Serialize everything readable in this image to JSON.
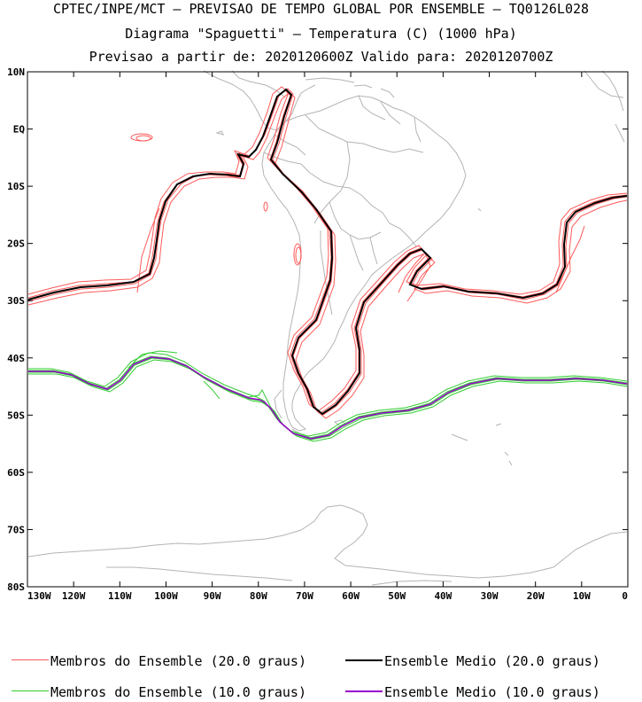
{
  "title": {
    "line1": "CPTEC/INPE/MCT – PREVISAO DE TEMPO GLOBAL POR ENSEMBLE – TQ0126L028",
    "line2": "Diagrama \"Spaguetti\" – Temperatura (C) (1000 hPa)",
    "line3": "Previsao a partir de: 2020120600Z  Valido para: 2020120700Z"
  },
  "map": {
    "lat_range": [
      -80,
      10
    ],
    "lon_range": [
      -130,
      0
    ],
    "lat_ticks": [
      "10N",
      "EQ",
      "10S",
      "20S",
      "30S",
      "40S",
      "50S",
      "60S",
      "70S",
      "80S"
    ],
    "lon_ticks": [
      "130W",
      "120W",
      "110W",
      "100W",
      "90W",
      "80W",
      "70W",
      "60W",
      "50W",
      "40W",
      "30W",
      "20W",
      "10W",
      "0"
    ]
  },
  "legend": [
    {
      "label": "Membros do Ensemble (20.0 graus)",
      "color": "#ff5a5a"
    },
    {
      "label": "Ensemble Medio (20.0 graus)",
      "color": "#000000"
    },
    {
      "label": "Membros do Ensemble (10.0 graus)",
      "color": "#33cc33"
    },
    {
      "label": "Ensemble Medio (10.0 graus)",
      "color": "#9900cc"
    }
  ],
  "colors": {
    "coastline": "#b4b4b4",
    "member_20": "#ff5a5a",
    "mean_20": "#000000",
    "member_10": "#33cc33",
    "mean_10": "#9900cc"
  }
}
